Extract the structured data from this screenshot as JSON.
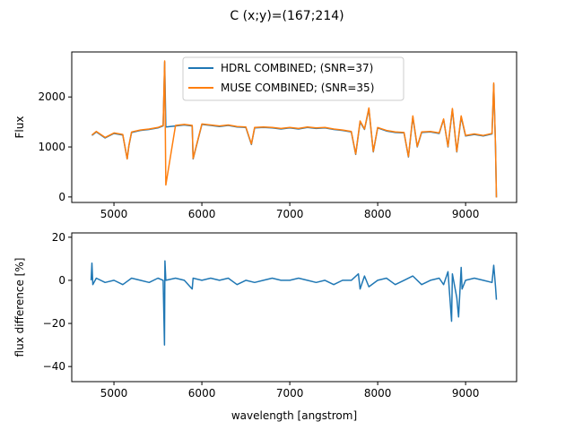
{
  "figure_title": "C  (x;y)=(167;214)",
  "chart_data": [
    {
      "type": "line",
      "ylabel": "Flux",
      "xlim": [
        4520,
        9580
      ],
      "ylim": [
        -110,
        2900
      ],
      "xticks": [
        5000,
        6000,
        7000,
        8000,
        9000
      ],
      "yticks": [
        0,
        1000,
        2000
      ],
      "legend_position": "top-center",
      "grid": false,
      "series": [
        {
          "name": "HDRL COMBINED; (SNR=37)",
          "color": "#1f77b4",
          "x": [
            4750,
            4800,
            4900,
            5000,
            5100,
            5150,
            5170,
            5200,
            5300,
            5400,
            5500,
            5560,
            5577,
            5590,
            5700,
            5800,
            5890,
            5900,
            6000,
            6100,
            6200,
            6300,
            6400,
            6500,
            6563,
            6600,
            6700,
            6800,
            6900,
            7000,
            7100,
            7200,
            7300,
            7400,
            7500,
            7600,
            7700,
            7750,
            7800,
            7850,
            7900,
            7950,
            8000,
            8100,
            8200,
            8300,
            8350,
            8400,
            8450,
            8500,
            8600,
            8700,
            8750,
            8800,
            8850,
            8900,
            8950,
            9000,
            9100,
            9200,
            9300,
            9320,
            9340,
            9350
          ],
          "y": [
            1230,
            1300,
            1180,
            1270,
            1240,
            760,
            1020,
            1290,
            1330,
            1350,
            1380,
            1420,
            2700,
            1400,
            1420,
            1440,
            1420,
            760,
            1450,
            1430,
            1410,
            1430,
            1400,
            1390,
            1050,
            1380,
            1390,
            1380,
            1360,
            1380,
            1360,
            1390,
            1370,
            1380,
            1350,
            1330,
            1300,
            850,
            1500,
            1350,
            1760,
            900,
            1380,
            1320,
            1290,
            1280,
            800,
            1600,
            1000,
            1290,
            1300,
            1270,
            1550,
            1000,
            1750,
            900,
            1600,
            1220,
            1250,
            1220,
            1260,
            2250,
            1000,
            -10
          ]
        },
        {
          "name": "MUSE COMBINED; (SNR=35)",
          "color": "#ff7f0e",
          "x": [
            4750,
            4800,
            4900,
            5000,
            5100,
            5150,
            5170,
            5200,
            5300,
            5400,
            5500,
            5560,
            5577,
            5590,
            5700,
            5800,
            5890,
            5900,
            6000,
            6100,
            6200,
            6300,
            6400,
            6500,
            6563,
            6600,
            6700,
            6800,
            6900,
            7000,
            7100,
            7200,
            7300,
            7400,
            7500,
            7600,
            7700,
            7750,
            7800,
            7850,
            7900,
            7950,
            8000,
            8100,
            8200,
            8300,
            8350,
            8400,
            8450,
            8500,
            8600,
            8700,
            8750,
            8800,
            8850,
            8900,
            8950,
            9000,
            9100,
            9200,
            9300,
            9320,
            9340,
            9350
          ],
          "y": [
            1240,
            1310,
            1190,
            1280,
            1250,
            760,
            1030,
            1300,
            1340,
            1360,
            1390,
            1430,
            2720,
            240,
            1430,
            1450,
            1430,
            770,
            1460,
            1440,
            1420,
            1440,
            1410,
            1400,
            1060,
            1390,
            1400,
            1390,
            1370,
            1390,
            1370,
            1400,
            1380,
            1390,
            1360,
            1340,
            1310,
            860,
            1520,
            1360,
            1780,
            910,
            1390,
            1330,
            1300,
            1290,
            810,
            1620,
            1010,
            1300,
            1310,
            1280,
            1560,
            1010,
            1770,
            910,
            1620,
            1230,
            1260,
            1230,
            1270,
            2280,
            1010,
            -10
          ]
        }
      ]
    },
    {
      "type": "line",
      "xlabel": "wavelength [angstrom]",
      "ylabel": "flux difference [%]",
      "xlim": [
        4520,
        9580
      ],
      "ylim": [
        -47,
        22
      ],
      "xticks": [
        5000,
        6000,
        7000,
        8000,
        9000
      ],
      "yticks": [
        -40,
        -20,
        0,
        20
      ],
      "grid": false,
      "series": [
        {
          "color": "#1f77b4",
          "x": [
            4740,
            4750,
            4760,
            4800,
            4900,
            5000,
            5100,
            5200,
            5300,
            5400,
            5500,
            5560,
            5575,
            5580,
            5590,
            5700,
            5800,
            5890,
            5900,
            6000,
            6100,
            6200,
            6300,
            6400,
            6500,
            6600,
            6700,
            6800,
            6900,
            7000,
            7100,
            7200,
            7300,
            7400,
            7500,
            7600,
            7700,
            7780,
            7800,
            7850,
            7900,
            8000,
            8100,
            8200,
            8300,
            8400,
            8500,
            8600,
            8700,
            8750,
            8800,
            8840,
            8850,
            8900,
            8920,
            8950,
            8960,
            9000,
            9100,
            9200,
            9300,
            9320,
            9340,
            9350
          ],
          "y": [
            0,
            8,
            -2,
            1,
            -1,
            0,
            -2,
            1,
            0,
            -1,
            1,
            0,
            -30,
            9,
            0,
            1,
            0,
            -4,
            1,
            0,
            1,
            0,
            1,
            -2,
            0,
            -1,
            0,
            1,
            0,
            0,
            1,
            0,
            -1,
            0,
            -2,
            0,
            0,
            3,
            -4,
            2,
            -3,
            0,
            1,
            -2,
            0,
            2,
            -2,
            0,
            1,
            -2,
            4,
            -19,
            3,
            -8,
            -17,
            6,
            -4,
            0,
            1,
            0,
            -1,
            7,
            -3,
            -9
          ]
        }
      ]
    }
  ]
}
